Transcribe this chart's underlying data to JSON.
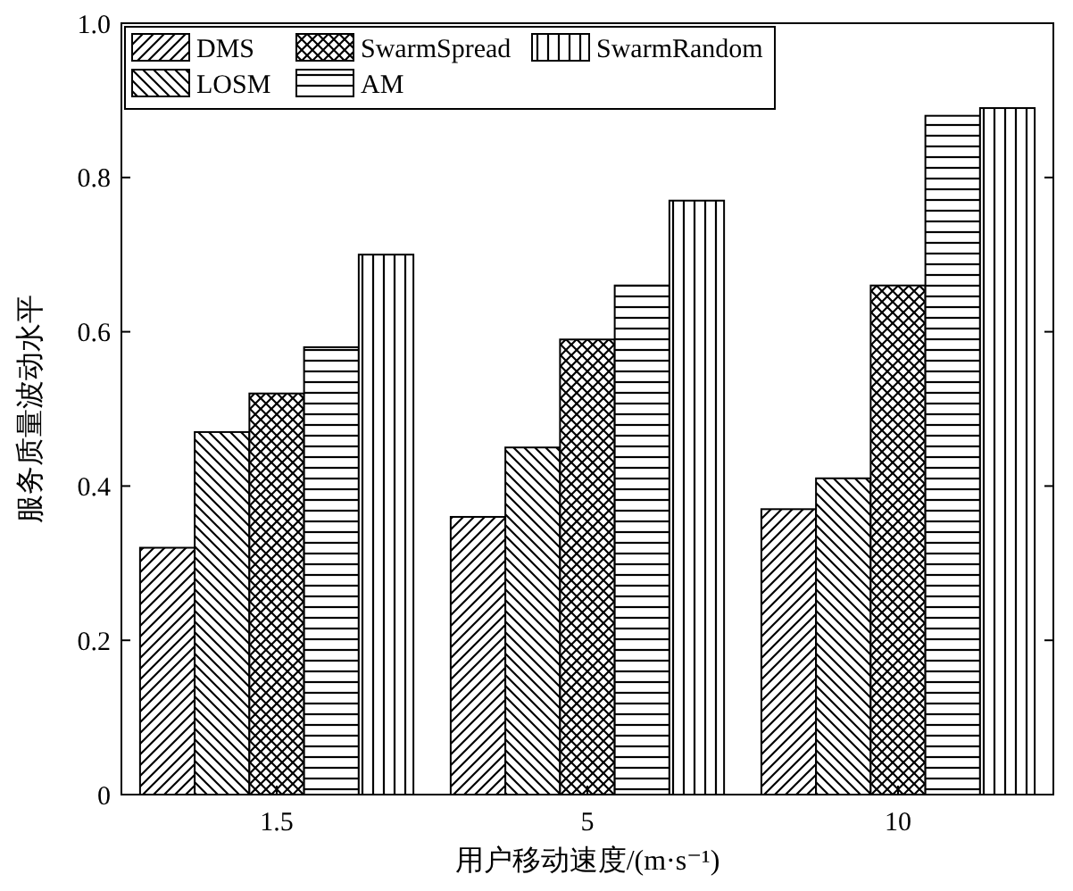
{
  "chart_data": {
    "type": "bar",
    "xlabel": "用户移动速度/(m·s⁻¹)",
    "ylabel": "服务质量波动水平",
    "categories": [
      "1.5",
      "5",
      "10"
    ],
    "series": [
      {
        "name": "DMS",
        "color": "#000000",
        "values": [
          0.32,
          0.36,
          0.37
        ]
      },
      {
        "name": "LOSM",
        "color": "#000000",
        "values": [
          0.47,
          0.45,
          0.41
        ]
      },
      {
        "name": "SwarmSpread",
        "color": "#000000",
        "values": [
          0.52,
          0.59,
          0.66
        ]
      },
      {
        "name": "AM",
        "color": "#000000",
        "values": [
          0.58,
          0.66,
          0.88
        ]
      },
      {
        "name": "SwarmRandom",
        "color": "#000000",
        "values": [
          0.7,
          0.77,
          0.89
        ]
      }
    ],
    "ylim": [
      0,
      1
    ],
    "yticks": [
      {
        "value": 0,
        "label": "0"
      },
      0.2,
      0.4,
      0.6,
      0.8,
      {
        "value": 1,
        "label": "1.0"
      }
    ],
    "grid": false,
    "legend": "top left"
  }
}
